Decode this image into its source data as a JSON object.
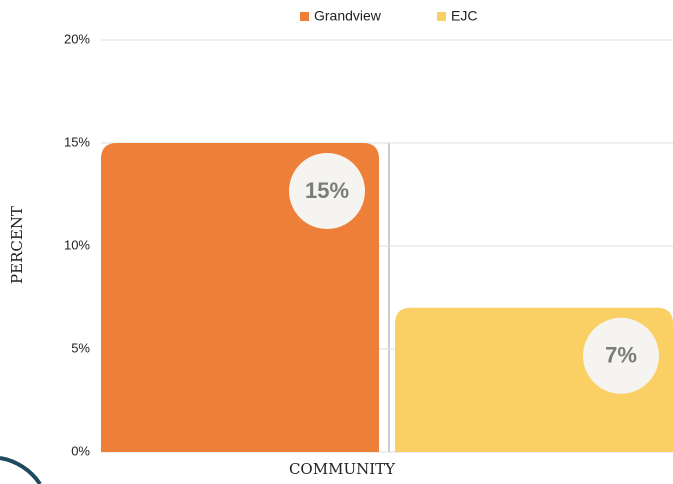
{
  "chart_data": {
    "type": "bar",
    "x_label": "COMMUNITY",
    "y_label": "PERCENT",
    "categories": [
      null
    ],
    "series": [
      {
        "name": "Grandview",
        "color": "#ed7f38",
        "values": [
          15
        ],
        "value_labels": [
          "15%"
        ]
      },
      {
        "name": "EJC",
        "color": "#fad064",
        "values": [
          7
        ],
        "value_labels": [
          "7%"
        ]
      }
    ],
    "ylim": [
      0,
      20
    ],
    "yticks": [
      {
        "value": 0,
        "label": "0%"
      },
      {
        "value": 5,
        "label": "5%"
      },
      {
        "value": 10,
        "label": "10%"
      },
      {
        "value": 15,
        "label": "15%"
      },
      {
        "value": 20,
        "label": "20%"
      }
    ],
    "grid": true,
    "legend": "top"
  }
}
